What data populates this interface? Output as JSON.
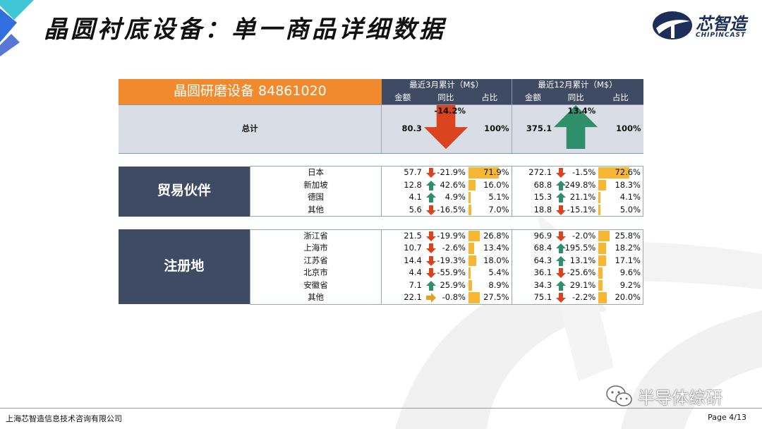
{
  "title": "晶圆衬底设备：单一商品详细数据",
  "logo": {
    "name": "芯智造",
    "subtitle": "CHIPINCAST"
  },
  "table": {
    "product": "晶圆研磨设备 84861020",
    "period_3m": "最近3月累计（M$）",
    "period_12m": "最近12月累计（M$）",
    "col_amount": "金额",
    "col_yoy": "同比",
    "col_share": "占比",
    "total": {
      "label": "总计",
      "m3": {
        "amount": "80.3",
        "yoy": "-14.2%",
        "trend": "down",
        "share": "100%"
      },
      "m12": {
        "amount": "375.1",
        "yoy": "13.4%",
        "trend": "up",
        "share": "100%"
      }
    },
    "groups": [
      {
        "label": "贸易伙伴",
        "rows": [
          {
            "name": "日本",
            "m3": {
              "amount": "57.7",
              "yoy": "-21.9%",
              "trend": "down",
              "share": "71.9%",
              "share_value": 71.9
            },
            "m12": {
              "amount": "272.1",
              "yoy": "-1.5%",
              "trend": "down",
              "share": "72.6%",
              "share_value": 72.6
            }
          },
          {
            "name": "新加坡",
            "m3": {
              "amount": "12.8",
              "yoy": "42.6%",
              "trend": "up",
              "share": "16.0%",
              "share_value": 16.0
            },
            "m12": {
              "amount": "68.8",
              "yoy": "249.8%",
              "trend": "up",
              "share": "18.3%",
              "share_value": 18.3
            }
          },
          {
            "name": "德国",
            "m3": {
              "amount": "4.1",
              "yoy": "4.9%",
              "trend": "up",
              "share": "5.1%",
              "share_value": 5.1
            },
            "m12": {
              "amount": "15.3",
              "yoy": "21.1%",
              "trend": "up",
              "share": "4.1%",
              "share_value": 4.1
            }
          },
          {
            "name": "其他",
            "m3": {
              "amount": "5.6",
              "yoy": "-16.5%",
              "trend": "down",
              "share": "7.0%",
              "share_value": 7.0
            },
            "m12": {
              "amount": "18.8",
              "yoy": "-15.1%",
              "trend": "down",
              "share": "5.0%",
              "share_value": 5.0
            }
          }
        ]
      },
      {
        "label": "注册地",
        "rows": [
          {
            "name": "浙江省",
            "m3": {
              "amount": "21.5",
              "yoy": "-19.9%",
              "trend": "down",
              "share": "26.8%",
              "share_value": 26.8
            },
            "m12": {
              "amount": "96.9",
              "yoy": "-2.0%",
              "trend": "down",
              "share": "25.8%",
              "share_value": 25.8
            }
          },
          {
            "name": "上海市",
            "m3": {
              "amount": "10.7",
              "yoy": "-2.6%",
              "trend": "down",
              "share": "13.4%",
              "share_value": 13.4
            },
            "m12": {
              "amount": "68.4",
              "yoy": "195.5%",
              "trend": "up",
              "share": "18.2%",
              "share_value": 18.2
            }
          },
          {
            "name": "江苏省",
            "m3": {
              "amount": "14.4",
              "yoy": "-19.3%",
              "trend": "down",
              "share": "18.0%",
              "share_value": 18.0
            },
            "m12": {
              "amount": "64.3",
              "yoy": "13.1%",
              "trend": "up",
              "share": "17.1%",
              "share_value": 17.1
            }
          },
          {
            "name": "北京市",
            "m3": {
              "amount": "4.4",
              "yoy": "-55.9%",
              "trend": "down",
              "share": "5.4%",
              "share_value": 5.4
            },
            "m12": {
              "amount": "36.1",
              "yoy": "-25.6%",
              "trend": "down",
              "share": "9.6%",
              "share_value": 9.6
            }
          },
          {
            "name": "安徽省",
            "m3": {
              "amount": "7.1",
              "yoy": "25.9%",
              "trend": "up",
              "share": "8.9%",
              "share_value": 8.9
            },
            "m12": {
              "amount": "34.3",
              "yoy": "29.1%",
              "trend": "up",
              "share": "9.2%",
              "share_value": 9.2
            }
          },
          {
            "name": "其他",
            "m3": {
              "amount": "22.1",
              "yoy": "-0.8%",
              "trend": "flat",
              "share": "27.5%",
              "share_value": 27.5
            },
            "m12": {
              "amount": "75.1",
              "yoy": "-2.2%",
              "trend": "down",
              "share": "20.0%",
              "share_value": 20.0
            }
          }
        ]
      }
    ]
  },
  "footer": {
    "company": "上海芯智造信息技术咨询有限公司",
    "page": "Page 4/13"
  },
  "watermark": {
    "text": "半导体综研",
    "icon": "wechat-icon"
  },
  "colors": {
    "header_dark": "#3f4b63",
    "header_orange": "#f08a2c",
    "bar": "#f7b733",
    "up": "#2f8f6b",
    "down": "#d9441f",
    "flat": "#e0a020"
  }
}
